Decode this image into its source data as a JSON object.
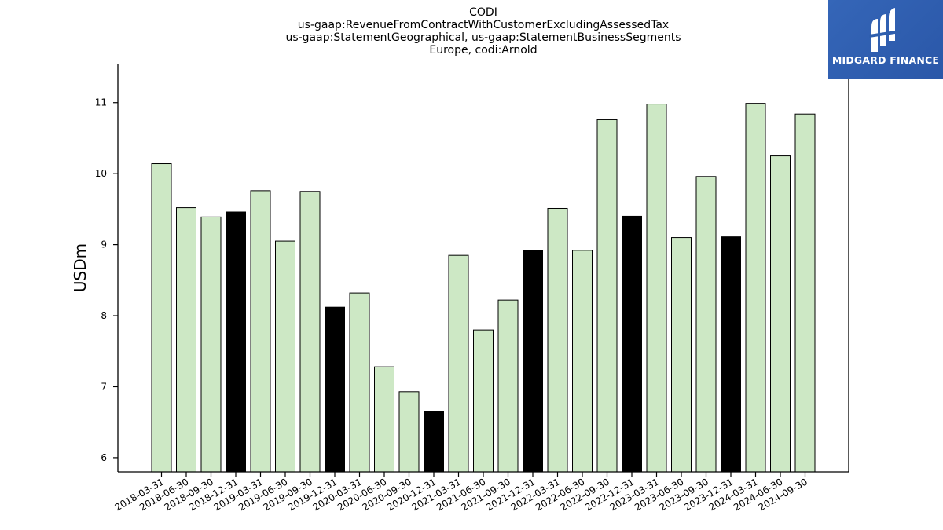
{
  "title_lines": [
    "CODI",
    "us-gaap:RevenueFromContractWithCustomerExcludingAssessedTax",
    "us-gaap:StatementGeographical, us-gaap:StatementBusinessSegments",
    "Europe, codi:Arnold"
  ],
  "logo": {
    "text": "MIDGARD FINANCE",
    "icon": "midgard-logo-icon",
    "background": "#2e5eae"
  },
  "colors": {
    "quarter_bar": "#cde8c5",
    "year_end_bar": "#000000",
    "bar_edge": "#000000"
  },
  "chart_data": {
    "type": "bar",
    "title": "CODI\nus-gaap:RevenueFromContractWithCustomerExcludingAssessedTax\nus-gaap:StatementGeographical, us-gaap:StatementBusinessSegments\nEurope, codi:Arnold",
    "xlabel": "",
    "ylabel": "USDm",
    "ylim": [
      5.8,
      11.55
    ],
    "yticks": [
      6,
      7,
      8,
      9,
      10,
      11
    ],
    "grid": false,
    "categories": [
      "2018-03-31",
      "2018-06-30",
      "2018-09-30",
      "2018-12-31",
      "2019-03-31",
      "2019-06-30",
      "2019-09-30",
      "2019-12-31",
      "2020-03-31",
      "2020-06-30",
      "2020-09-30",
      "2020-12-31",
      "2021-03-31",
      "2021-06-30",
      "2021-09-30",
      "2021-12-31",
      "2022-03-31",
      "2022-06-30",
      "2022-09-30",
      "2022-12-31",
      "2023-03-31",
      "2023-06-30",
      "2023-09-30",
      "2023-12-31",
      "2024-03-31",
      "2024-06-30",
      "2024-09-30"
    ],
    "values": [
      10.14,
      9.52,
      9.39,
      9.46,
      9.76,
      9.05,
      9.75,
      8.12,
      8.32,
      7.28,
      6.93,
      6.65,
      8.85,
      7.8,
      8.22,
      8.92,
      9.51,
      8.92,
      10.76,
      9.4,
      10.98,
      9.1,
      9.96,
      9.11,
      10.99,
      10.25,
      10.84
    ]
  }
}
